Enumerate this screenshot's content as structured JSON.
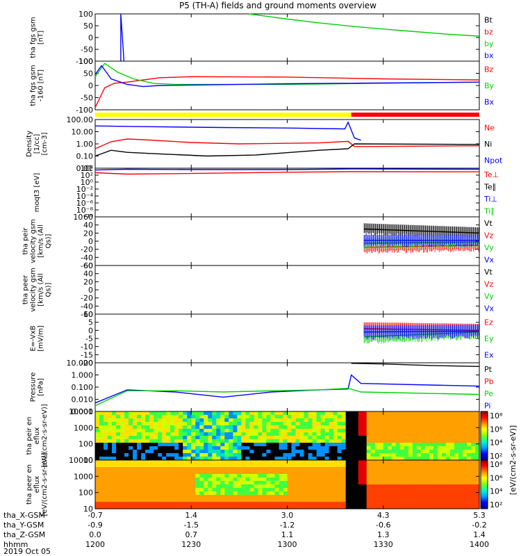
{
  "title": "P5 (TH-A) fields and ground moments overview",
  "date": "2019 Oct 05",
  "colors": {
    "black": "#000000",
    "red": "#ff0000",
    "green": "#00d000",
    "blue": "#0000ff",
    "yellow": "#ffff00",
    "gray": "#aaaaaa",
    "orange": "#ff9900"
  },
  "mode_bar": [
    {
      "from": "12:00",
      "to": "13:20",
      "color": "#ffff00"
    },
    {
      "from": "13:20",
      "to": "14:00",
      "color": "#ff0000"
    }
  ],
  "x_axis": {
    "rows": [
      {
        "label": "tha_X-GSM",
        "values": [
          "-0.7",
          "1.4",
          "3.0",
          "4.3",
          "5.3"
        ]
      },
      {
        "label": "tha_Y-GSM",
        "values": [
          "-0.9",
          "-1.5",
          "-1.2",
          "-0.6",
          "-0.2"
        ]
      },
      {
        "label": "tha_Z-GSM",
        "values": [
          "0.0",
          "0.7",
          "1.1",
          "1.3",
          "1.4"
        ]
      },
      {
        "label": "hhmm",
        "values": [
          "1200",
          "1230",
          "1300",
          "1330",
          "1400"
        ]
      }
    ]
  },
  "colorbar_label": "[eV/(cm2-s-sr-eV)]",
  "colorbar_ticks": [
    "10⁸",
    "10⁶",
    "10⁴",
    "10²"
  ],
  "chart_data": [
    {
      "type": "line",
      "ylabel": "tha fgs gsm [nT]",
      "ylim": [
        -100,
        100
      ],
      "yticks": [
        "100",
        "50",
        "0",
        "-50",
        "-100"
      ],
      "legend": [
        "Bt",
        "bz",
        "by",
        "bx"
      ],
      "legend_colors": [
        "#000000",
        "#ff0000",
        "#00d000",
        "#0000ff"
      ],
      "series": [
        {
          "name": "by",
          "x": [
            "12:48",
            "13:00",
            "13:10",
            "13:20",
            "13:30",
            "13:40",
            "13:50",
            "14:00"
          ],
          "values": [
            100,
            78,
            62,
            48,
            36,
            25,
            14,
            6
          ]
        },
        {
          "name": "bx",
          "x": [
            "12:08",
            "12:08",
            "12:09"
          ],
          "values": [
            -100,
            100,
            -100
          ]
        }
      ]
    },
    {
      "type": "line",
      "ylabel": "tha fgs gsm -160 [nT]",
      "ylim": [
        -120,
        100
      ],
      "yticks": [
        "100",
        "50",
        "0",
        "-50",
        "-100"
      ],
      "legend": [
        "Bz",
        "By",
        "Bx"
      ],
      "legend_colors": [
        "#ff0000",
        "#00d000",
        "#0000ff"
      ],
      "series": [
        {
          "name": "Bz",
          "x": [
            "12:00",
            "12:03",
            "12:06",
            "12:10",
            "12:15",
            "12:20",
            "12:30",
            "13:00",
            "13:30",
            "14:00"
          ],
          "values": [
            -110,
            -20,
            0,
            5,
            15,
            25,
            30,
            28,
            20,
            15
          ]
        },
        {
          "name": "By",
          "x": [
            "12:00",
            "12:03",
            "12:07",
            "12:12",
            "12:18",
            "12:25",
            "13:00",
            "13:30",
            "14:00"
          ],
          "values": [
            30,
            90,
            50,
            20,
            0,
            -5,
            -5,
            0,
            5
          ]
        },
        {
          "name": "Bx",
          "x": [
            "12:00",
            "12:02",
            "12:05",
            "12:10",
            "12:15",
            "12:20",
            "13:00",
            "14:00"
          ],
          "values": [
            40,
            80,
            20,
            -5,
            -15,
            -10,
            -2,
            5
          ]
        }
      ]
    },
    {
      "type": "line",
      "ylabel": "Density [1/cc] [cm-3]",
      "scale": "log",
      "ylim": [
        0.01,
        100
      ],
      "yticks": [
        "100.00",
        "10.00",
        "1.00",
        "0.10",
        "0.01"
      ],
      "legend": [
        "Ne",
        "Ni",
        "Npot"
      ],
      "legend_colors": [
        "#ff0000",
        "#000000",
        "#0000ff"
      ],
      "series": [
        {
          "name": "Ne",
          "x": [
            "12:00",
            "12:05",
            "12:10",
            "12:15",
            "12:30",
            "12:45",
            "13:10",
            "13:19",
            "13:21",
            "14:00"
          ],
          "values": [
            0.4,
            1.5,
            2.5,
            2.2,
            1.3,
            1.0,
            1.2,
            1.6,
            0.6,
            0.7
          ]
        },
        {
          "name": "Ni",
          "x": [
            "12:00",
            "12:05",
            "12:10",
            "12:20",
            "12:35",
            "12:50",
            "13:10",
            "13:19",
            "13:21",
            "14:00"
          ],
          "values": [
            0.1,
            0.3,
            0.2,
            0.15,
            0.1,
            0.12,
            0.3,
            0.4,
            1.0,
            0.9
          ]
        },
        {
          "name": "Npot",
          "x": [
            "12:00",
            "12:15",
            "12:40",
            "13:00",
            "13:18",
            "13:19",
            "13:21",
            "13:23"
          ],
          "values": [
            30,
            26,
            22,
            20,
            17,
            60,
            3,
            2
          ]
        }
      ]
    },
    {
      "type": "line",
      "ylabel": "moqt3 [eV]",
      "scale": "log",
      "ylim": [
        1e-10,
        10000
      ],
      "yticks": [
        "10⁴",
        "10²",
        "10⁰",
        "10⁻²",
        "10⁻⁴",
        "10⁻⁶",
        "10⁻⁸",
        "10⁻¹⁰"
      ],
      "legend": [
        "Te⊥",
        "Te∥",
        "Ti⊥",
        "Ti∥"
      ],
      "legend_colors": [
        "#ff0000",
        "#000000",
        "#0000ff",
        "#00d000"
      ],
      "series": [
        {
          "name": "Ti⊥",
          "x": [
            "12:00",
            "12:10",
            "12:30",
            "13:00",
            "13:20",
            "14:00"
          ],
          "values": [
            3000,
            5000,
            4000,
            4000,
            6000,
            5000
          ]
        },
        {
          "name": "Te⊥",
          "x": [
            "12:00",
            "12:10",
            "12:30",
            "13:00",
            "13:20",
            "14:00"
          ],
          "values": [
            500,
            200,
            300,
            700,
            1000,
            900
          ]
        }
      ]
    },
    {
      "type": "line",
      "ylabel": "tha peir velocity gsm [km/s (All Qs)]",
      "ylim": [
        -60,
        60
      ],
      "yticks": [
        "60",
        "40",
        "20",
        "0",
        "-20",
        "-40",
        "-60"
      ],
      "legend": [
        "Vt",
        "Vz",
        "Vy",
        "Vx"
      ],
      "legend_colors": [
        "#000000",
        "#ff0000",
        "#00d000",
        "#0000ff"
      ],
      "series": [
        {
          "name": "Vt",
          "x": [
            "13:24",
            "14:00"
          ],
          "values": [
            30,
            20
          ]
        },
        {
          "name": "Vz",
          "x": [
            "13:24",
            "14:00"
          ],
          "values": [
            -15,
            -10
          ]
        },
        {
          "name": "Vy",
          "x": [
            "13:24",
            "14:00"
          ],
          "values": [
            -5,
            -2
          ]
        },
        {
          "name": "Vx",
          "x": [
            "13:24",
            "14:00"
          ],
          "values": [
            2,
            2
          ]
        }
      ]
    },
    {
      "type": "line",
      "ylabel": "tha peer velocity gsm [km/s (All Qs)]",
      "ylim": [
        -60,
        60
      ],
      "yticks": [
        "60",
        "40",
        "20",
        "0",
        "-20",
        "-40",
        "-60"
      ],
      "legend": [
        "Vt",
        "Vz",
        "Vy",
        "Vx"
      ],
      "legend_colors": [
        "#000000",
        "#ff0000",
        "#00d000",
        "#0000ff"
      ],
      "series": []
    },
    {
      "type": "line",
      "ylabel": "E=-VxB [mV/m]",
      "ylim": [
        -20,
        10
      ],
      "yticks": [
        "10",
        "5",
        "0",
        "-5",
        "-10",
        "-15",
        "-20"
      ],
      "legend": [
        "Ez",
        "Ey",
        "Ex"
      ],
      "legend_colors": [
        "#ff0000",
        "#00d000",
        "#0000ff"
      ],
      "series": [
        {
          "name": "Ez",
          "x": [
            "13:24",
            "14:00"
          ],
          "values": [
            1,
            0
          ]
        },
        {
          "name": "Ey",
          "x": [
            "13:24",
            "14:00"
          ],
          "values": [
            -4,
            -1
          ]
        },
        {
          "name": "Ex",
          "x": [
            "13:24",
            "14:00"
          ],
          "values": [
            -1,
            -0.5
          ]
        }
      ]
    },
    {
      "type": "line",
      "ylabel": "Pressure [nPa]",
      "scale": "log",
      "ylim": [
        0.001,
        10
      ],
      "yticks": [
        "10.000",
        "1.000",
        "0.100",
        "0.010",
        "0.001"
      ],
      "legend": [
        "Pt",
        "Pb",
        "Pe",
        "Pi"
      ],
      "legend_colors": [
        "#000000",
        "#ff0000",
        "#00d000",
        "#0000ff"
      ],
      "series": [
        {
          "name": "Pt",
          "x": [
            "13:20",
            "13:30",
            "13:45",
            "14:00"
          ],
          "values": [
            9,
            8,
            6,
            5
          ]
        },
        {
          "name": "Pi",
          "x": [
            "12:00",
            "12:10",
            "12:25",
            "12:40",
            "12:55",
            "13:10",
            "13:19",
            "13:20",
            "13:23",
            "14:00"
          ],
          "values": [
            0.005,
            0.06,
            0.04,
            0.015,
            0.04,
            0.06,
            0.07,
            1.0,
            0.2,
            0.12
          ]
        },
        {
          "name": "Pe",
          "x": [
            "12:00",
            "12:10",
            "12:25",
            "12:40",
            "12:55",
            "13:10",
            "13:19",
            "13:23",
            "14:00"
          ],
          "values": [
            0.003,
            0.05,
            0.05,
            0.04,
            0.05,
            0.06,
            0.08,
            0.04,
            0.025
          ]
        }
      ]
    },
    {
      "type": "heatmap",
      "ylabel": "tha peir en eflux [eV/(cm2-s-sr-eV)]",
      "scale": "log",
      "ylim": [
        5,
        25000
      ],
      "yticks": [
        "10000",
        "1000",
        "100",
        "10"
      ]
    },
    {
      "type": "heatmap",
      "ylabel": "tha peer en eflux [eV/(cm2-s-sr-eV)]",
      "scale": "log",
      "ylim": [
        5,
        25000
      ],
      "yticks": [
        "10000",
        "1000",
        "100",
        "10"
      ]
    }
  ]
}
